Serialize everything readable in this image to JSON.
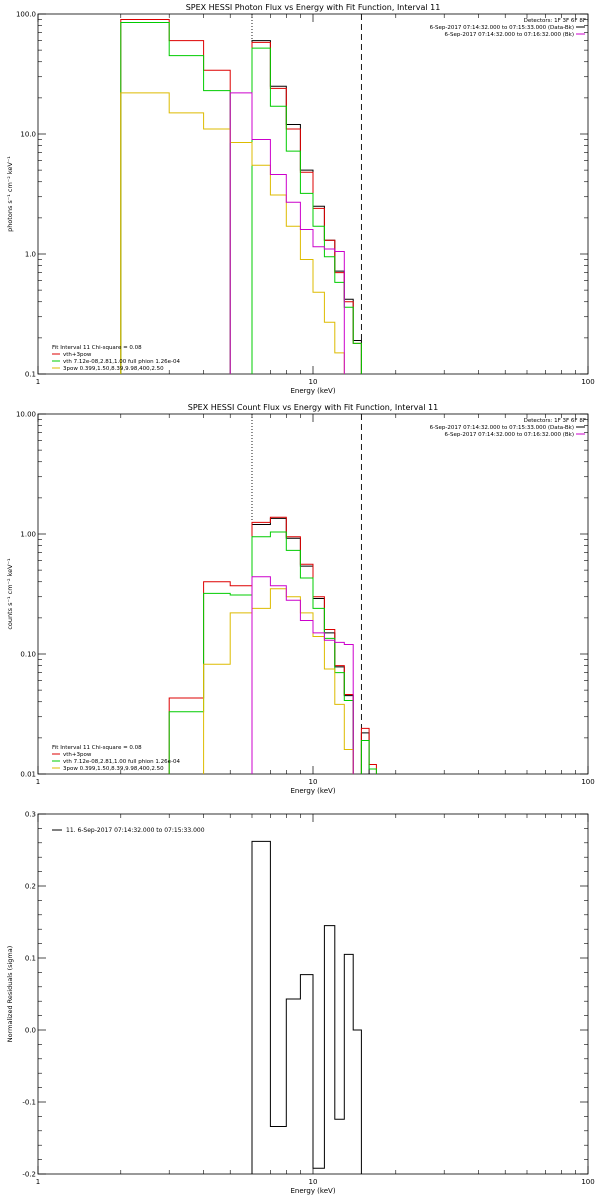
{
  "chart_data": [
    {
      "type": "line",
      "title": "SPEX HESSI Photon Flux vs Energy with Fit Function, Interval 11",
      "xlabel": "Energy (keV)",
      "ylabel": "photons s⁻¹ cm⁻² keV⁻¹",
      "xscale": "log",
      "yscale": "log",
      "xlim": [
        1,
        100
      ],
      "ylim": [
        0.1,
        100
      ],
      "x_ticks": [
        "1",
        "10",
        "100"
      ],
      "y_ticks": [
        "0.1",
        "1.0",
        "10.0",
        "100.0"
      ],
      "detectors": "Detectors: 1F 3F 6F 8F",
      "legend_right": [
        {
          "text": "6-Sep-2017 07:14:32.000 to 07:15:33.000 (Data-Bk)",
          "color": "#000000"
        },
        {
          "text": "6-Sep-2017 07:14:32.000 to 07:16:32.000 (Bk)",
          "color": "#cc00cc"
        }
      ],
      "legend_left": [
        {
          "text": "Fit Interval 11   Chi-square = 0.08",
          "color": null
        },
        {
          "text": "vth+3pow",
          "color": "#dd0000"
        },
        {
          "text": "vth 7.12e-08,2.81,1.00  full phion 1.26e-04",
          "color": "#00cc00"
        },
        {
          "text": "3pow 0.399,1.50,8.39,9.98,400,2.50",
          "color": "#ddbb00"
        }
      ],
      "vlines": [
        {
          "x": 6.0,
          "style": "dotted"
        },
        {
          "x": 15.0,
          "style": "dashed"
        }
      ],
      "bin_edges": [
        2.0,
        3.0,
        4.0,
        5.0,
        6.0,
        7.0,
        8.0,
        9.0,
        10.0,
        11.0,
        12.0,
        13.0,
        14.0,
        15.0,
        16.0,
        17.0,
        18.0
      ],
      "series": [
        {
          "color": "#000000",
          "values": [
            null,
            null,
            null,
            null,
            60,
            25,
            12,
            5,
            2.5,
            1.3,
            0.72,
            0.42,
            0.19,
            null,
            null,
            null
          ]
        },
        {
          "color": "#dd0000",
          "values": [
            90,
            60,
            34,
            null,
            58,
            24,
            11,
            4.8,
            2.4,
            1.3,
            0.7,
            0.4,
            0.18,
            null,
            null,
            null
          ]
        },
        {
          "color": "#00cc00",
          "values": [
            85,
            45,
            23,
            null,
            52,
            17,
            7.2,
            3.2,
            1.7,
            0.95,
            0.58,
            0.36,
            0.18,
            null,
            null,
            null
          ]
        },
        {
          "color": "#ddbb00",
          "values": [
            22,
            15,
            11,
            8.5,
            5.5,
            3.1,
            1.7,
            0.9,
            0.48,
            0.27,
            0.15,
            null,
            null,
            null,
            null,
            null
          ]
        },
        {
          "color": "#cc00cc",
          "values": [
            null,
            null,
            null,
            22,
            9.0,
            4.6,
            2.7,
            1.6,
            1.15,
            1.1,
            1.05,
            null,
            null,
            null,
            null,
            null
          ]
        }
      ]
    },
    {
      "type": "line",
      "title": "SPEX HESSI Count Flux vs Energy with Fit Function, Interval 11",
      "xlabel": "Energy (keV)",
      "ylabel": "counts s⁻¹ cm⁻² keV⁻¹",
      "xscale": "log",
      "yscale": "log",
      "xlim": [
        1,
        100
      ],
      "ylim": [
        0.01,
        10
      ],
      "x_ticks": [
        "1",
        "10",
        "100"
      ],
      "y_ticks": [
        "0.01",
        "0.10",
        "1.00",
        "10.00"
      ],
      "detectors": "Detectors: 1F 3F 6F 8F",
      "legend_right": [
        {
          "text": "6-Sep-2017 07:14:32.000 to 07:15:33.000 (Data-Bk)",
          "color": "#000000"
        },
        {
          "text": "6-Sep-2017 07:14:32.000 to 07:16:32.000 (Bk)",
          "color": "#cc00cc"
        }
      ],
      "legend_left": [
        {
          "text": "Fit Interval 11   Chi-square = 0.08",
          "color": null
        },
        {
          "text": "vth+3pow",
          "color": "#dd0000"
        },
        {
          "text": "vth 7.12e-08,2.81,1.00  full phion 1.26e-04",
          "color": "#00cc00"
        },
        {
          "text": "3pow 0.399,1.50,8.39,9.98,400,2.50",
          "color": "#ddbb00"
        }
      ],
      "vlines": [
        {
          "x": 6.0,
          "style": "dotted"
        },
        {
          "x": 15.0,
          "style": "dashed"
        }
      ],
      "bin_edges": [
        3.0,
        4.0,
        5.0,
        6.0,
        7.0,
        8.0,
        9.0,
        10.0,
        11.0,
        12.0,
        13.0,
        14.0,
        15.0,
        16.0,
        17.0,
        18.0
      ],
      "series": [
        {
          "color": "#000000",
          "values": [
            null,
            null,
            null,
            1.2,
            1.35,
            0.92,
            0.54,
            0.29,
            0.15,
            0.078,
            0.045,
            null,
            0.022,
            null,
            null
          ]
        },
        {
          "color": "#dd0000",
          "values": [
            0.043,
            0.4,
            0.37,
            1.25,
            1.38,
            0.95,
            0.56,
            0.3,
            0.16,
            0.08,
            0.046,
            null,
            0.024,
            0.012,
            null
          ]
        },
        {
          "color": "#00cc00",
          "values": [
            0.033,
            0.32,
            0.31,
            0.95,
            1.04,
            0.73,
            0.43,
            0.24,
            0.135,
            0.07,
            0.041,
            null,
            0.019,
            0.011,
            null
          ]
        },
        {
          "color": "#ddbb00",
          "values": [
            null,
            0.082,
            0.22,
            0.24,
            0.35,
            0.3,
            0.22,
            0.14,
            0.075,
            0.038,
            0.016,
            null,
            null,
            null,
            null
          ]
        },
        {
          "color": "#cc00cc",
          "values": [
            null,
            null,
            null,
            0.44,
            0.37,
            0.28,
            0.19,
            0.15,
            0.13,
            0.125,
            0.12,
            null,
            null,
            null,
            null
          ]
        }
      ]
    },
    {
      "type": "line",
      "title": "",
      "xlabel": "Energy (keV)",
      "ylabel": "Normalized Residuals (sigma)",
      "xscale": "log",
      "yscale": "linear",
      "xlim": [
        1,
        100
      ],
      "ylim": [
        -0.2,
        0.3
      ],
      "x_ticks": [
        "1",
        "10",
        "100"
      ],
      "y_ticks": [
        "-0.2",
        "-0.1",
        "0.0",
        "0.1",
        "0.2",
        "0.3"
      ],
      "legend": "11.  6-Sep-2017 07:14:32.000 to 07:15:33.000",
      "bin_edges": [
        6.0,
        7.0,
        8.0,
        9.0,
        10.0,
        11.0,
        12.0,
        13.0,
        14.0,
        15.0
      ],
      "residuals": [
        0.262,
        -0.134,
        0.043,
        0.077,
        -0.192,
        0.145,
        -0.124,
        0.105,
        0.0
      ]
    }
  ]
}
